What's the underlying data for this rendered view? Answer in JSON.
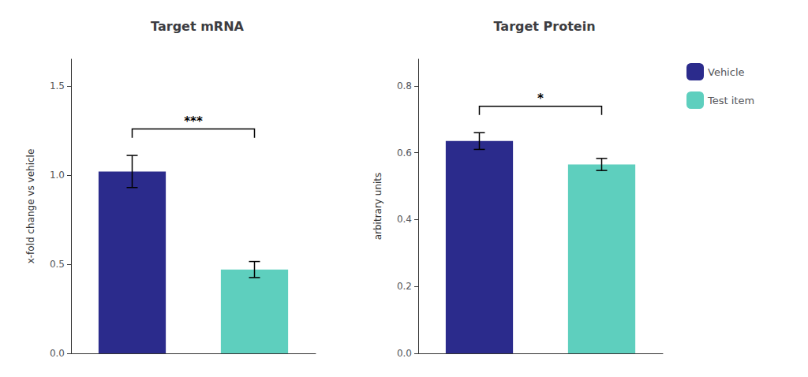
{
  "chart_data": [
    {
      "type": "bar",
      "title": "Target mRNA",
      "ylabel": "x-fold change vs vehicle",
      "series": [
        {
          "name": "Vehicle",
          "color": "#2B2B8C",
          "values": [
            1.02
          ],
          "errors": [
            0.09
          ]
        },
        {
          "name": "Test item",
          "color": "#5ECFBE",
          "values": [
            0.47
          ],
          "errors": [
            0.045
          ]
        }
      ],
      "ylim": [
        0,
        1.65
      ],
      "yticks": [
        {
          "value": 0,
          "label": "0.0"
        },
        0.5,
        {
          "value": 1,
          "label": "1.0"
        },
        1.5
      ],
      "annotations": [
        {
          "text": "***"
        }
      ],
      "grid": false,
      "tick_labels": "y"
    },
    {
      "type": "bar",
      "title": "Target Protein",
      "ylabel": "arbitrary units",
      "series": [
        {
          "name": "Vehicle",
          "color": "#2B2B8C",
          "values": [
            0.635
          ],
          "errors": [
            0.025
          ]
        },
        {
          "name": "Test item",
          "color": "#5ECFBE",
          "values": [
            0.565
          ],
          "errors": [
            0.018
          ]
        }
      ],
      "ylim": [
        0,
        0.88
      ],
      "yticks": [
        {
          "value": 0,
          "label": "0.0"
        },
        0.2,
        0.4,
        0.6,
        0.8
      ],
      "annotations": [
        {
          "text": "*"
        }
      ],
      "grid": false,
      "tick_labels": "y",
      "legend": "right"
    }
  ]
}
